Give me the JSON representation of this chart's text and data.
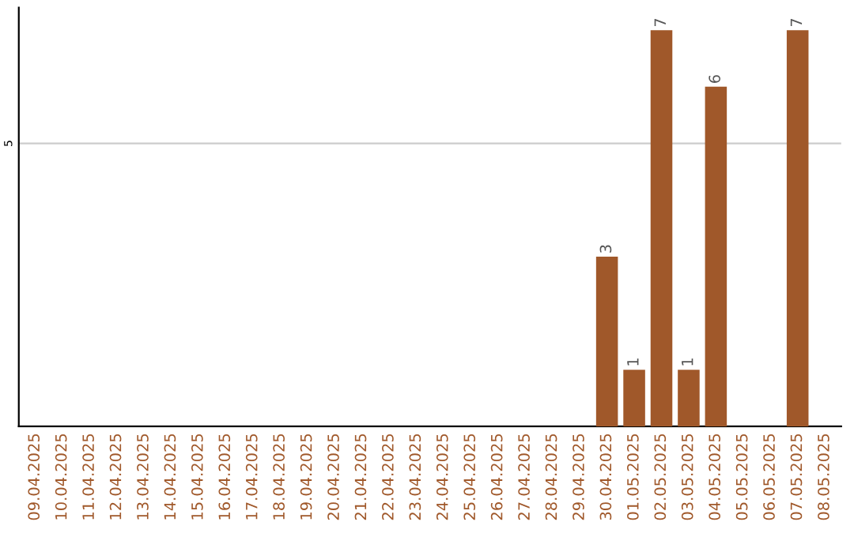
{
  "chart_data": {
    "type": "bar",
    "categories": [
      "09.04.2025",
      "10.04.2025",
      "11.04.2025",
      "12.04.2025",
      "13.04.2025",
      "14.04.2025",
      "15.04.2025",
      "16.04.2025",
      "17.04.2025",
      "18.04.2025",
      "19.04.2025",
      "20.04.2025",
      "21.04.2025",
      "22.04.2025",
      "23.04.2025",
      "24.04.2025",
      "25.04.2025",
      "26.04.2025",
      "27.04.2025",
      "28.04.2025",
      "29.04.2025",
      "30.04.2025",
      "01.05.2025",
      "02.05.2025",
      "03.05.2025",
      "04.05.2025",
      "05.05.2025",
      "06.05.2025",
      "07.05.2025",
      "08.05.2025"
    ],
    "values": [
      null,
      null,
      null,
      null,
      null,
      null,
      null,
      null,
      null,
      null,
      null,
      null,
      null,
      null,
      null,
      null,
      null,
      null,
      null,
      null,
      null,
      3,
      1,
      7,
      1,
      6,
      null,
      null,
      7,
      null
    ],
    "data_labels": true,
    "color": "#a0582a",
    "ylim": [
      0,
      7.4
    ],
    "yticks": [
      5
    ],
    "grid": "y"
  }
}
